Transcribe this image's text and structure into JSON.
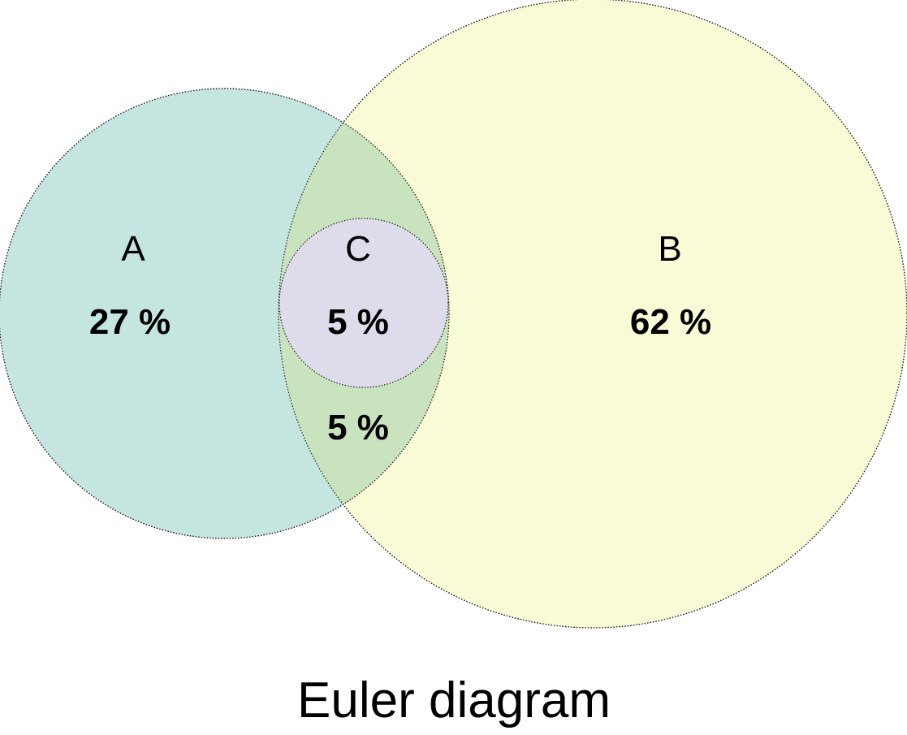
{
  "caption": "Euler diagram",
  "sets": {
    "a": {
      "name": "A",
      "fill": "#c5e6e0"
    },
    "b": {
      "name": "B",
      "fill": "#f9fad6"
    },
    "c": {
      "name": "C",
      "fill": "#dedbea"
    }
  },
  "overlap_fill": "#c9e3bf",
  "regions": {
    "a_only": "27 %",
    "b_only": "62 %",
    "c": "5 %",
    "a_and_b_not_c": "5 %"
  }
}
